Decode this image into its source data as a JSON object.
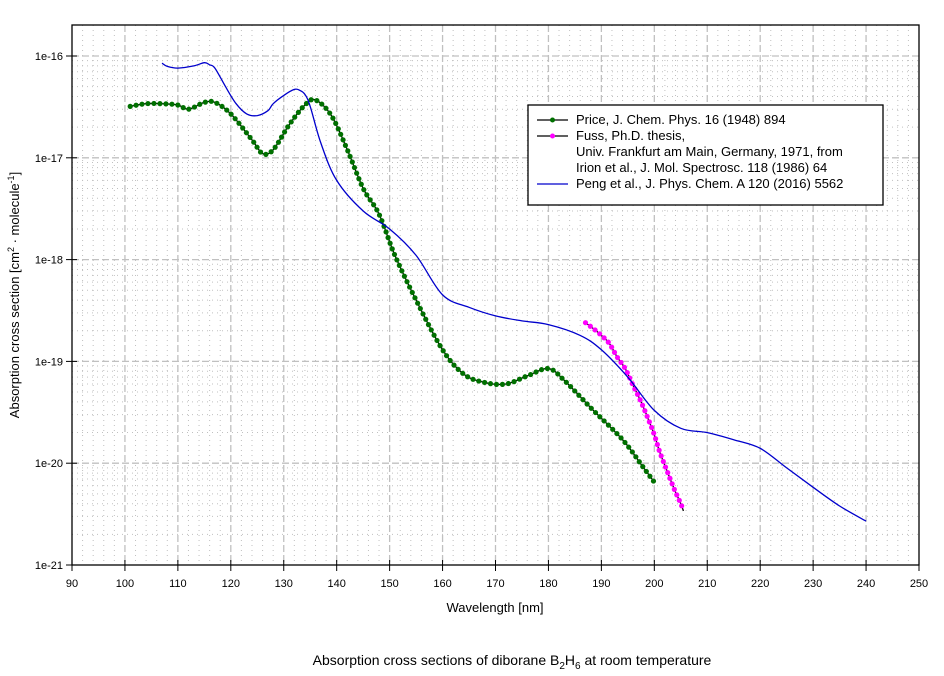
{
  "chart_data": {
    "type": "line",
    "title": "Absorption cross sections of diborane B2H6 at room temperature",
    "title_parts": {
      "pre": "Absorption cross sections of diborane B",
      "sub1": "2",
      "mid": "H",
      "sub2": "6",
      "post": " at room temperature"
    },
    "xlabel": "Wavelength [nm]",
    "ylabel": "Absorption cross section [cm2 · molecule-1]",
    "ylabel_parts": {
      "pre": "Absorption cross section [cm",
      "sup1": "2",
      "mid": " · molecule",
      "sup2": "-1",
      "post": "]"
    },
    "xlim": [
      90,
      250
    ],
    "ylim": [
      1e-21,
      2e-16
    ],
    "yscale": "log",
    "grid": true,
    "legend_position": "top-right",
    "x_ticks": [
      "90",
      "100",
      "110",
      "120",
      "130",
      "140",
      "150",
      "160",
      "170",
      "180",
      "190",
      "200",
      "210",
      "220",
      "230",
      "240",
      "250"
    ],
    "y_ticks": [
      {
        "value": 1e-16,
        "label": "1e-16"
      },
      {
        "value": 1e-17,
        "label": "1e-17"
      },
      {
        "value": 1e-18,
        "label": "1e-18"
      },
      {
        "value": 1e-19,
        "label": "1e-19"
      },
      {
        "value": 1e-20,
        "label": "1e-20"
      },
      {
        "value": 1e-21,
        "label": "1e-21"
      }
    ],
    "series": [
      {
        "name": "Price, J. Chem. Phys. 16 (1948) 894",
        "legend_lines": [
          "Price, J. Chem. Phys. 16 (1948) 894"
        ],
        "line_color": "#000000",
        "marker_color": "#007000",
        "markers": true,
        "x": [
          101,
          104,
          107,
          110,
          112,
          115,
          117,
          120,
          124,
          126,
          128,
          131,
          134,
          136,
          139,
          142,
          145,
          148,
          151,
          155,
          160,
          164,
          168,
          172,
          176,
          180,
          183,
          188,
          194,
          198,
          200
        ],
        "y": [
          3.2e-17,
          3.4e-17,
          3.4e-17,
          3.3e-17,
          3e-17,
          3.5e-17,
          3.5e-17,
          2.7e-17,
          1.5e-17,
          1.1e-17,
          1.2e-17,
          2.1e-17,
          3.3e-17,
          3.7e-17,
          2.6e-17,
          1.2e-17,
          5e-18,
          2.8e-18,
          1.1e-18,
          4e-19,
          1.3e-19,
          7.5e-20,
          6.2e-20,
          6e-20,
          7.2e-20,
          8.5e-20,
          6.5e-20,
          3.5e-20,
          1.7e-20,
          9e-21,
          6.5e-21
        ]
      },
      {
        "name": "Fuss, Ph.D. thesis, Univ. Frankfurt am Main, Germany, 1971, from Irion et al., J. Mol. Spectrosc. 118 (1986) 64",
        "legend_lines": [
          "Fuss, Ph.D. thesis,",
          "Univ. Frankfurt am Main, Germany, 1971, from",
          "Irion et al., J. Mol. Spectrosc. 118 (1986) 64"
        ],
        "line_color": "#000000",
        "marker_color": "#ff00ff",
        "markers": true,
        "x": [
          187,
          188.5,
          190,
          191.5,
          193,
          194.5,
          196,
          197.5,
          199,
          200,
          201,
          202,
          203,
          204,
          205,
          205.5
        ],
        "y": [
          2.4e-19,
          2.1e-19,
          1.8e-19,
          1.5e-19,
          1.1e-19,
          8.5e-20,
          5.8e-20,
          4e-20,
          2.6e-20,
          1.9e-20,
          1.3e-20,
          9.5e-21,
          7e-21,
          5.2e-21,
          4e-21,
          3.4e-21
        ]
      },
      {
        "name": "Peng et al., J. Phys. Chem. A 120 (2016) 5562",
        "legend_lines": [
          "Peng et al., J. Phys. Chem. A 120 (2016) 5562"
        ],
        "line_color": "#0000cc",
        "markers": false,
        "x": [
          107,
          108,
          110,
          113,
          115,
          116,
          117,
          119,
          121,
          123,
          125,
          127,
          128,
          130,
          132,
          133,
          134,
          135,
          137,
          140,
          145,
          150,
          155,
          160,
          165,
          170,
          175,
          180,
          186,
          190,
          195,
          200,
          205,
          210,
          215,
          220,
          225,
          230,
          235,
          240
        ],
        "y": [
          8.5e-17,
          7.9e-17,
          7.6e-17,
          8e-17,
          8.6e-17,
          8.2e-17,
          7.6e-17,
          5e-17,
          3.4e-17,
          2.7e-17,
          2.6e-17,
          2.9e-17,
          3.4e-17,
          4.1e-17,
          4.7e-17,
          4.6e-17,
          4.2e-17,
          3.2e-17,
          1.4e-17,
          6e-18,
          3e-18,
          2e-18,
          1.1e-18,
          4.5e-19,
          3.4e-19,
          2.8e-19,
          2.5e-19,
          2.3e-19,
          1.8e-19,
          1.3e-19,
          7e-20,
          3.3e-20,
          2.2e-20,
          2e-20,
          1.7e-20,
          1.4e-20,
          9e-21,
          5.8e-21,
          3.8e-21,
          2.7e-21
        ]
      }
    ]
  }
}
